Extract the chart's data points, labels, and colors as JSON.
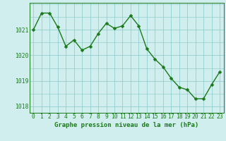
{
  "x": [
    0,
    1,
    2,
    3,
    4,
    5,
    6,
    7,
    8,
    9,
    10,
    11,
    12,
    13,
    14,
    15,
    16,
    17,
    18,
    19,
    20,
    21,
    22,
    23
  ],
  "y": [
    1021.0,
    1021.65,
    1021.65,
    1021.1,
    1020.35,
    1020.6,
    1020.2,
    1020.35,
    1020.85,
    1021.25,
    1021.05,
    1021.15,
    1021.55,
    1021.15,
    1020.25,
    1019.85,
    1019.55,
    1019.1,
    1018.75,
    1018.65,
    1018.3,
    1018.3,
    1018.85,
    1019.35
  ],
  "line_color": "#1a7a1a",
  "marker_color": "#1a7a1a",
  "bg_color": "#d0eeee",
  "grid_color": "#88c8c8",
  "text_color": "#1a7a1a",
  "xlabel": "Graphe pression niveau de la mer (hPa)",
  "ylim_min": 1017.75,
  "ylim_max": 1022.05,
  "yticks": [
    1018,
    1019,
    1020,
    1021
  ],
  "xticks": [
    0,
    1,
    2,
    3,
    4,
    5,
    6,
    7,
    8,
    9,
    10,
    11,
    12,
    13,
    14,
    15,
    16,
    17,
    18,
    19,
    20,
    21,
    22,
    23
  ],
  "xlabel_fontsize": 6.5,
  "tick_fontsize": 5.8,
  "line_width": 1.0,
  "marker_size": 2.5
}
